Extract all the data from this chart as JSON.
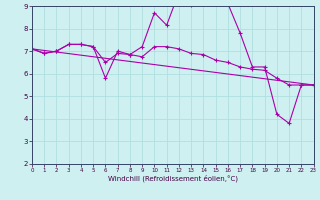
{
  "xlabel": "Windchill (Refroidissement éolien,°C)",
  "bg_color": "#cef0f0",
  "line_color": "#aa00aa",
  "grid_color": "#aadddd",
  "xmin": 0,
  "xmax": 23,
  "ymin": 2,
  "ymax": 9,
  "series": [
    {
      "x": [
        0,
        1,
        2,
        3,
        4,
        5,
        6,
        7,
        8,
        9,
        10,
        11,
        12,
        13,
        14,
        15,
        16,
        17,
        18,
        19,
        20,
        21,
        22,
        23
      ],
      "y": [
        7.1,
        6.9,
        7.0,
        7.3,
        7.3,
        7.2,
        5.8,
        7.0,
        6.85,
        7.2,
        8.7,
        8.15,
        9.6,
        9.05,
        9.1,
        9.2,
        9.1,
        7.8,
        6.3,
        6.3,
        4.2,
        3.8,
        5.5,
        5.5
      ]
    },
    {
      "x": [
        0,
        1,
        2,
        3,
        4,
        5,
        6,
        7,
        8,
        9,
        10,
        11,
        12,
        13,
        14,
        15,
        16,
        17,
        18,
        19,
        20,
        21,
        22,
        23
      ],
      "y": [
        7.1,
        6.9,
        7.0,
        7.3,
        7.3,
        7.2,
        6.5,
        6.9,
        6.85,
        6.75,
        7.2,
        7.2,
        7.1,
        6.9,
        6.85,
        6.6,
        6.5,
        6.3,
        6.2,
        6.15,
        5.8,
        5.5,
        5.5,
        5.5
      ]
    },
    {
      "x": [
        0,
        23
      ],
      "y": [
        7.1,
        5.5
      ]
    }
  ]
}
